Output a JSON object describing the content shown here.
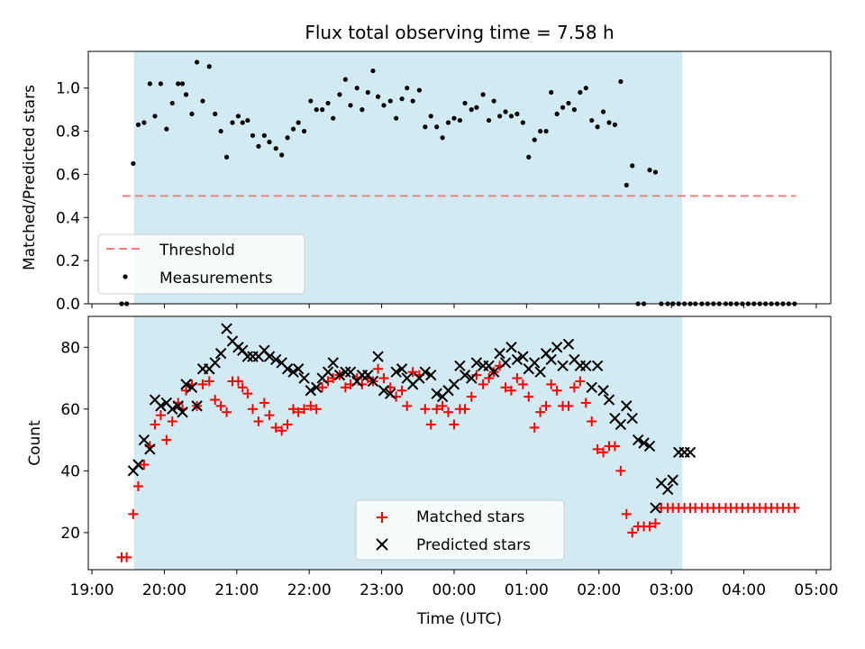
{
  "figure": {
    "title": "Flux total observing time = 7.58 h"
  },
  "chart_data": [
    {
      "type": "scatter",
      "panel": "top",
      "ylabel": "Matched/Predicted stars",
      "ylim": [
        0,
        1.17
      ],
      "yticks": [
        0.0,
        0.2,
        0.4,
        0.6,
        0.8,
        1.0
      ],
      "ytick_labels": [
        "0.0",
        "0.2",
        "0.4",
        "0.6",
        "0.8",
        "1.0"
      ],
      "xlim_hours": [
        18.98,
        25.18
      ],
      "shaded_span": {
        "start": "19:35",
        "end": "03:09",
        "start_h": 19.58,
        "end_h": 27.15,
        "color": "#add8e6"
      },
      "threshold": {
        "name": "Threshold",
        "value": 0.5,
        "x_start_h": 19.42,
        "x_end_h": 28.72,
        "color": "#f08080"
      },
      "measurements": {
        "name": "Measurements",
        "color": "#000000",
        "x_h": [
          19.41,
          19.48,
          19.57,
          19.64,
          19.72,
          19.8,
          19.87,
          19.95,
          20.03,
          20.11,
          20.19,
          20.25,
          20.3,
          20.38,
          20.45,
          20.53,
          20.62,
          20.7,
          20.78,
          20.86,
          20.94,
          21.02,
          21.08,
          21.15,
          21.22,
          21.3,
          21.38,
          21.45,
          21.54,
          21.62,
          21.7,
          21.78,
          21.85,
          21.93,
          22.02,
          22.1,
          22.18,
          22.26,
          22.33,
          22.42,
          22.5,
          22.57,
          22.66,
          22.73,
          22.81,
          22.88,
          22.95,
          23.03,
          23.12,
          23.2,
          23.28,
          23.35,
          23.43,
          23.52,
          23.6,
          23.68,
          23.76,
          23.84,
          23.92,
          24.0,
          24.08,
          24.15,
          24.24,
          24.31,
          24.4,
          24.48,
          24.55,
          24.63,
          24.71,
          24.79,
          24.87,
          24.95,
          25.03,
          25.11,
          25.19,
          25.27,
          25.34,
          25.42,
          25.5,
          25.58,
          25.66,
          25.74,
          25.82,
          25.9,
          25.98,
          26.06,
          26.14,
          26.22,
          26.3,
          26.38,
          26.46,
          26.54,
          26.62,
          26.7,
          26.78,
          26.86,
          26.95,
          27.02,
          27.1,
          27.18,
          27.26,
          27.33,
          27.42,
          27.5,
          27.58,
          27.66,
          27.75,
          27.82,
          27.9,
          27.98,
          28.06,
          28.14,
          28.22,
          28.3,
          28.38,
          28.46,
          28.54,
          28.62,
          28.7
        ],
        "y": [
          0.0,
          0.0,
          0.65,
          0.83,
          0.84,
          1.02,
          0.87,
          1.02,
          0.81,
          0.93,
          1.02,
          1.02,
          0.97,
          0.88,
          1.12,
          0.94,
          1.1,
          0.88,
          0.8,
          0.68,
          0.84,
          0.87,
          0.84,
          0.85,
          0.78,
          0.73,
          0.78,
          0.75,
          0.72,
          0.69,
          0.77,
          0.81,
          0.84,
          0.8,
          0.94,
          0.9,
          0.9,
          0.93,
          0.86,
          0.97,
          1.04,
          0.92,
          1.0,
          0.9,
          0.98,
          1.08,
          0.96,
          0.92,
          0.94,
          0.86,
          0.95,
          1.0,
          0.94,
          0.99,
          0.82,
          0.87,
          0.82,
          0.77,
          0.84,
          0.86,
          0.85,
          0.93,
          0.9,
          0.91,
          0.97,
          0.85,
          0.94,
          0.87,
          0.89,
          0.87,
          0.88,
          0.84,
          0.68,
          0.76,
          0.8,
          0.8,
          0.98,
          0.88,
          0.91,
          0.93,
          0.9,
          0.98,
          1.0,
          0.85,
          0.82,
          0.89,
          0.84,
          0.83,
          1.03,
          0.55,
          0.64,
          0.0,
          0.0,
          0.62,
          0.61,
          0.0,
          0.0,
          0.0,
          0.0,
          0.0,
          0.0,
          0.0,
          0.0,
          0.0,
          0.0,
          0.0,
          0.0,
          0.0,
          0.0,
          0.0,
          0.0,
          0.0,
          0.0,
          0.0,
          0.0,
          0.0,
          0.0,
          0.0,
          0.0
        ]
      },
      "legend": {
        "placement": "lower-left",
        "entries": [
          "Threshold",
          "Measurements"
        ]
      }
    },
    {
      "type": "scatter",
      "panel": "bottom",
      "ylabel": "Count",
      "xlabel": "Time (UTC)",
      "ylim": [
        8,
        90
      ],
      "yticks": [
        20,
        40,
        60,
        80
      ],
      "ytick_labels": [
        "20",
        "40",
        "60",
        "80"
      ],
      "xticks_h": [
        19,
        20,
        21,
        22,
        23,
        24,
        25,
        26,
        27,
        28,
        29
      ],
      "xtick_labels": [
        "19:00",
        "20:00",
        "21:00",
        "22:00",
        "23:00",
        "00:00",
        "01:00",
        "02:00",
        "03:00",
        "04:00",
        "05:00"
      ],
      "xlim_hours": [
        18.98,
        25.18
      ],
      "shaded_span": {
        "start": "19:35",
        "end": "03:09",
        "start_h": 19.58,
        "end_h": 27.15,
        "color": "#add8e6"
      },
      "series": [
        {
          "name": "Matched stars",
          "marker": "plus",
          "color": "#ff0000",
          "x_h": [
            19.41,
            19.48,
            19.57,
            19.64,
            19.72,
            19.8,
            19.87,
            19.95,
            20.03,
            20.11,
            20.19,
            20.25,
            20.3,
            20.38,
            20.45,
            20.53,
            20.62,
            20.7,
            20.78,
            20.86,
            20.94,
            21.02,
            21.08,
            21.15,
            21.22,
            21.3,
            21.38,
            21.45,
            21.54,
            21.62,
            21.7,
            21.78,
            21.85,
            21.93,
            22.02,
            22.1,
            22.18,
            22.26,
            22.33,
            22.42,
            22.5,
            22.57,
            22.66,
            22.73,
            22.81,
            22.88,
            22.95,
            23.03,
            23.12,
            23.2,
            23.28,
            23.35,
            23.43,
            23.52,
            23.6,
            23.68,
            23.76,
            23.84,
            23.92,
            24.0,
            24.08,
            24.15,
            24.24,
            24.31,
            24.4,
            24.48,
            24.55,
            24.63,
            24.71,
            24.79,
            24.87,
            24.95,
            25.03,
            25.11,
            25.19,
            25.27,
            25.34,
            25.42,
            25.5,
            25.58,
            25.66,
            25.74,
            25.82,
            25.9,
            25.98,
            26.06,
            26.14,
            26.22,
            26.3,
            26.38,
            26.46,
            26.54,
            26.62,
            26.7,
            26.78,
            26.86,
            26.95,
            27.02,
            27.1,
            27.18,
            27.26,
            27.33,
            27.42,
            27.5,
            27.58,
            27.66,
            27.75,
            27.82,
            27.9,
            27.98,
            28.06,
            28.14,
            28.22,
            28.3,
            28.38,
            28.46,
            28.54,
            28.62,
            28.7
          ],
          "y": [
            12,
            12,
            26,
            35,
            42,
            48,
            55,
            58,
            50,
            56,
            62,
            60,
            66,
            68,
            61,
            68,
            69,
            63,
            61,
            59,
            69,
            69,
            67,
            65,
            60,
            56,
            62,
            58,
            54,
            53,
            55,
            60,
            59,
            60,
            61,
            60,
            67,
            69,
            70,
            71,
            67,
            68,
            70,
            68,
            70,
            69,
            73,
            70,
            67,
            64,
            66,
            61,
            72,
            71,
            60,
            55,
            60,
            61,
            59,
            55,
            60,
            60,
            64,
            71,
            68,
            70,
            72,
            74,
            67,
            66,
            70,
            68,
            64,
            54,
            59,
            61,
            68,
            66,
            61,
            61,
            67,
            69,
            62,
            56,
            47,
            46,
            48,
            48,
            40,
            26,
            20,
            22,
            22,
            22,
            23,
            28,
            28,
            28,
            28,
            28,
            28,
            28,
            28,
            28,
            28,
            28,
            28,
            28,
            28,
            28,
            28,
            28,
            28,
            28,
            28,
            28,
            28,
            28,
            28
          ]
        },
        {
          "name": "Predicted stars",
          "marker": "x",
          "color": "#000000",
          "x_h": [
            19.57,
            19.64,
            19.72,
            19.8,
            19.87,
            19.95,
            20.03,
            20.11,
            20.19,
            20.25,
            20.3,
            20.38,
            20.45,
            20.53,
            20.62,
            20.7,
            20.78,
            20.86,
            20.94,
            21.02,
            21.08,
            21.15,
            21.22,
            21.3,
            21.38,
            21.45,
            21.54,
            21.62,
            21.7,
            21.78,
            21.85,
            21.93,
            22.02,
            22.1,
            22.18,
            22.26,
            22.33,
            22.42,
            22.5,
            22.57,
            22.66,
            22.73,
            22.81,
            22.88,
            22.95,
            23.03,
            23.12,
            23.2,
            23.28,
            23.35,
            23.43,
            23.52,
            23.6,
            23.68,
            23.76,
            23.84,
            23.92,
            24.0,
            24.08,
            24.15,
            24.24,
            24.31,
            24.4,
            24.48,
            24.55,
            24.63,
            24.71,
            24.79,
            24.87,
            24.95,
            25.03,
            25.11,
            25.19,
            25.27,
            25.34,
            25.42,
            25.5,
            25.58,
            25.66,
            25.74,
            25.82,
            25.9,
            25.98,
            26.06,
            26.14,
            26.22,
            26.3,
            26.38,
            26.46,
            26.54,
            26.62,
            26.7,
            26.78,
            26.86,
            26.95,
            27.02,
            27.1,
            27.18,
            27.26
          ],
          "y": [
            40,
            42,
            50,
            47,
            63,
            61,
            62,
            60,
            61,
            59,
            68,
            67,
            61,
            73,
            73,
            75,
            78,
            86,
            82,
            80,
            79,
            77,
            77,
            77,
            79,
            77,
            76,
            75,
            73,
            72,
            73,
            70,
            66,
            67,
            70,
            72,
            75,
            71,
            72,
            72,
            69,
            71,
            71,
            69,
            77,
            66,
            65,
            72,
            73,
            70,
            68,
            70,
            72,
            71,
            65,
            64,
            66,
            68,
            74,
            71,
            70,
            75,
            74,
            74,
            72,
            78,
            75,
            80,
            76,
            77,
            73,
            75,
            72,
            78,
            76,
            80,
            74,
            81,
            76,
            74,
            74,
            67,
            74,
            66,
            63,
            57,
            55,
            61,
            57,
            50,
            49,
            48,
            28,
            36,
            34,
            37,
            46,
            46,
            46
          ]
        }
      ],
      "legend": {
        "placement": "lower-center",
        "entries": [
          "Matched stars",
          "Predicted stars"
        ]
      }
    }
  ]
}
